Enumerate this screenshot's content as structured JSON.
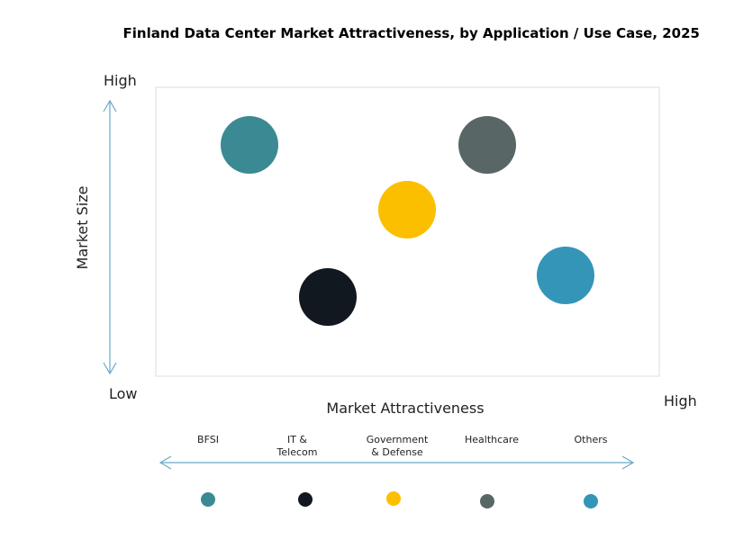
{
  "title": "Finland Data Center Market Attractiveness,  by Application / Use Case, 2025",
  "y_axis": {
    "label": "Market Size",
    "high": "High"
  },
  "corner": "Low",
  "x_axis": {
    "label": "Market Attractiveness",
    "high": "High"
  },
  "items": [
    {
      "label": "BFSI",
      "color": "#3b8a93"
    },
    {
      "label": "IT &\nTelecom",
      "color": "#111820"
    },
    {
      "label": "Government\n& Defense",
      "color": "#fcbf00"
    },
    {
      "label": "Healthcare",
      "color": "#586666"
    },
    {
      "label": "Others",
      "color": "#3495b9"
    }
  ]
}
